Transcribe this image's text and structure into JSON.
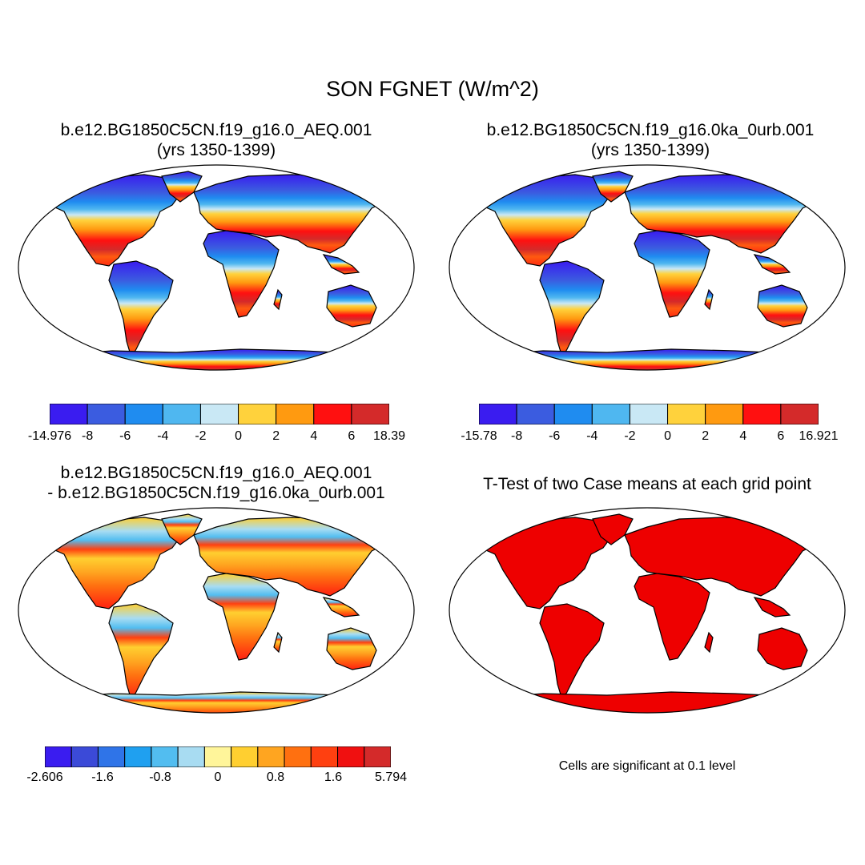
{
  "figure": {
    "title": "SON FGNET (W/m^2)"
  },
  "panels": [
    {
      "title_line1": "b.e12.BG1850C5CN.f19_g16.0_AEQ.001",
      "title_line2": "(yrs 1350-1399)",
      "colorbar": {
        "labels": [
          "-14.976",
          "-8",
          "-6",
          "-4",
          "-2",
          "0",
          "2",
          "4",
          "6",
          "18.39"
        ],
        "colors": [
          "#3a1cf0",
          "#3b5ce0",
          "#1f8cf0",
          "#4fb7f0",
          "#c9e8f5",
          "#ffd23c",
          "#ff9a10",
          "#ff1010",
          "#d42a2a"
        ]
      }
    },
    {
      "title_line1": "b.e12.BG1850C5CN.f19_g16.0ka_0urb.001",
      "title_line2": "(yrs 1350-1399)",
      "colorbar": {
        "labels": [
          "-15.78",
          "-8",
          "-6",
          "-4",
          "-2",
          "0",
          "2",
          "4",
          "6",
          "16.921"
        ],
        "colors": [
          "#3a1cf0",
          "#3b5ce0",
          "#1f8cf0",
          "#4fb7f0",
          "#c9e8f5",
          "#ffd23c",
          "#ff9a10",
          "#ff1010",
          "#d42a2a"
        ]
      }
    },
    {
      "title_line1": "b.e12.BG1850C5CN.f19_g16.0_AEQ.001",
      "title_line2": "- b.e12.BG1850C5CN.f19_g16.0ka_0urb.001",
      "colorbar": {
        "labels": [
          "-2.606",
          "-1.6",
          "-0.8",
          "0",
          "0.8",
          "1.6",
          "5.794"
        ],
        "colors": [
          "#3a1cf0",
          "#3b4ad8",
          "#2f74e8",
          "#1fa0f0",
          "#52bdf0",
          "#a8dcf2",
          "#fff59a",
          "#ffcf30",
          "#ffa520",
          "#ff7010",
          "#ff4010",
          "#f01010",
          "#d42a2a"
        ]
      }
    },
    {
      "title_line1": "T-Test of two Case means at each grid point",
      "note": "Cells are significant at 0.1 level",
      "fill_color": "#ee0000"
    }
  ]
}
